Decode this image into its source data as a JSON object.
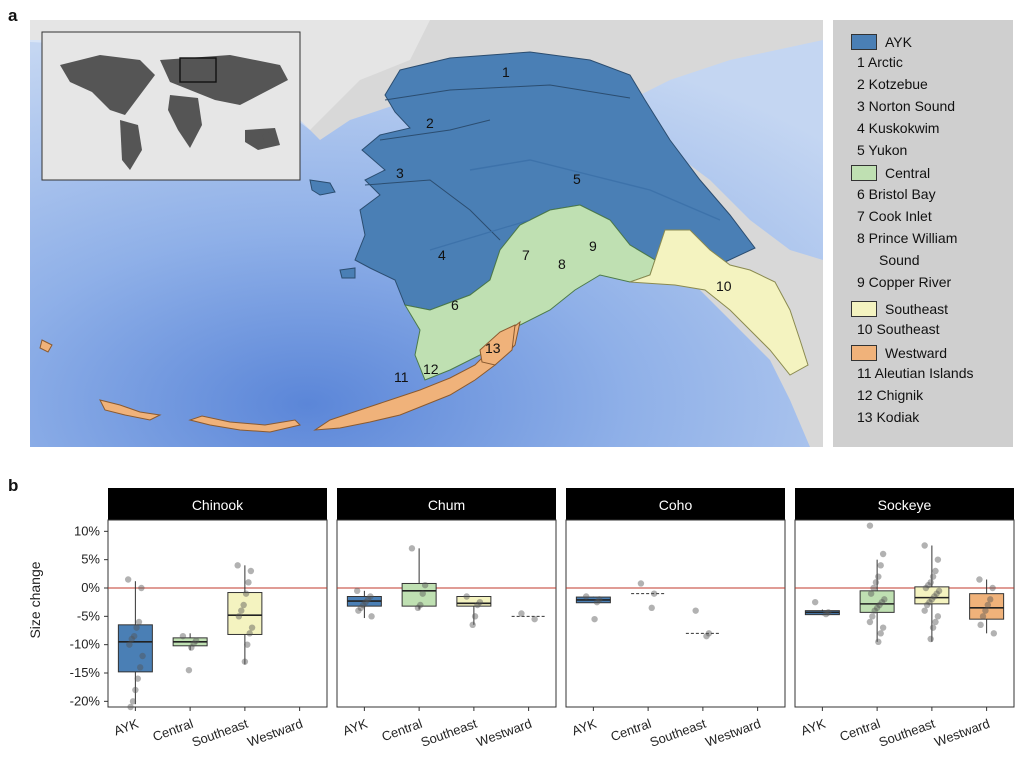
{
  "panel_a_label": "a",
  "panel_b_label": "b",
  "legend": {
    "groups": [
      {
        "name": "AYK",
        "color": "#4a7fb5",
        "items": [
          "1 Arctic",
          "2 Kotzebue",
          "3 Norton Sound",
          "4 Kuskokwim",
          "5 Yukon"
        ]
      },
      {
        "name": "Central",
        "color": "#bfe0b2",
        "items": [
          "6 Bristol Bay",
          "7 Cook Inlet",
          "8 Prince William",
          "Sound",
          "9 Copper River"
        ]
      },
      {
        "name": "Southeast",
        "color": "#f4f3c0",
        "items": [
          "10 Southeast"
        ]
      },
      {
        "name": "Westward",
        "color": "#f0b27a",
        "items": [
          "11 Aleutian Islands",
          "12 Chignik",
          "13 Kodiak"
        ]
      }
    ]
  },
  "map_labels": [
    "1",
    "2",
    "3",
    "4",
    "5",
    "6",
    "7",
    "8",
    "9",
    "10",
    "11",
    "12",
    "13"
  ],
  "chart_data": {
    "type": "box",
    "ylabel": "Size change",
    "yticks": [
      "10%",
      "5%",
      "0%",
      "-5%",
      "-10%",
      "-15%",
      "-20%"
    ],
    "ytick_values": [
      10,
      5,
      0,
      -5,
      -10,
      -15,
      -20
    ],
    "ylim": [
      -21,
      12
    ],
    "reference_line": 0,
    "categories": [
      "AYK",
      "Central",
      "Southeast",
      "Westward"
    ],
    "facets": [
      {
        "title": "Chinook",
        "boxes": [
          {
            "cat": "AYK",
            "q1": -14.8,
            "median": -9.5,
            "q3": -6.5,
            "lo": -20.5,
            "hi": 1.2,
            "points": [
              1.5,
              0,
              -6,
              -7,
              -8.5,
              -9,
              -10,
              -12,
              -14,
              -16,
              -18,
              -20,
              -21
            ]
          },
          {
            "cat": "Central",
            "q1": -10.2,
            "median": -9.5,
            "q3": -8.8,
            "lo": -11,
            "hi": -8,
            "points": [
              -8.5,
              -9.3,
              -9.8,
              -10.5,
              -14.5
            ]
          },
          {
            "cat": "Southeast",
            "q1": -8.2,
            "median": -4.8,
            "q3": -0.8,
            "lo": -13.5,
            "hi": 4,
            "points": [
              4,
              3,
              1,
              -1,
              -3,
              -4,
              -5,
              -7,
              -8,
              -10,
              -13
            ]
          },
          {
            "cat": "Westward",
            "points": []
          }
        ]
      },
      {
        "title": "Chum",
        "boxes": [
          {
            "cat": "AYK",
            "q1": -3.2,
            "median": -2.3,
            "q3": -1.5,
            "lo": -5.3,
            "hi": -0.5,
            "points": [
              -0.5,
              -1.5,
              -2,
              -2.5,
              -3,
              -3.5,
              -4,
              -5
            ]
          },
          {
            "cat": "Central",
            "q1": -3.2,
            "median": -0.5,
            "q3": 0.8,
            "lo": -3.8,
            "hi": 7,
            "points": [
              7,
              0.5,
              -1,
              -3,
              -3.5
            ]
          },
          {
            "cat": "Southeast",
            "q1": -3.2,
            "median": -2.7,
            "q3": -1.5,
            "lo": -6.5,
            "hi": -1.5,
            "points": [
              -1.5,
              -2.5,
              -3,
              -5,
              -6.5
            ]
          },
          {
            "cat": "Westward",
            "q1": -5,
            "median": -5,
            "q3": -5,
            "lo": -5,
            "hi": -5,
            "points": [
              -4.5,
              -5.5
            ],
            "flat": true
          }
        ]
      },
      {
        "title": "Coho",
        "boxes": [
          {
            "cat": "AYK",
            "q1": -2.6,
            "median": -2.1,
            "q3": -1.6,
            "lo": -2.6,
            "hi": -1.5,
            "points": [
              -1.5,
              -2,
              -2.5,
              -5.5
            ]
          },
          {
            "cat": "Central",
            "q1": -1,
            "median": -1,
            "q3": -1,
            "lo": -1,
            "hi": -1,
            "points": [
              0.8,
              -1,
              -3.5
            ],
            "flat": true
          },
          {
            "cat": "Southeast",
            "q1": -8,
            "median": -8,
            "q3": -8,
            "lo": -8,
            "hi": -8,
            "points": [
              -4,
              -8,
              -8.5
            ],
            "flat": true
          },
          {
            "cat": "Westward",
            "points": []
          }
        ]
      },
      {
        "title": "Sockeye",
        "boxes": [
          {
            "cat": "AYK",
            "q1": -4.7,
            "median": -4.3,
            "q3": -4,
            "lo": -4.8,
            "hi": -3.8,
            "points": [
              -2.5,
              -4.3,
              -4.6
            ]
          },
          {
            "cat": "Central",
            "q1": -4.3,
            "median": -2.8,
            "q3": -0.5,
            "lo": -9.5,
            "hi": 5,
            "points": [
              11,
              6,
              4,
              2,
              1,
              0,
              -1,
              -2,
              -2.5,
              -3,
              -3.5,
              -4,
              -5,
              -6,
              -7,
              -8,
              -9.5
            ]
          },
          {
            "cat": "Southeast",
            "q1": -2.8,
            "median": -1.7,
            "q3": 0.2,
            "lo": -9.5,
            "hi": 7.5,
            "points": [
              7.5,
              5,
              3,
              2,
              1,
              0.5,
              0,
              -0.5,
              -1,
              -1.5,
              -2,
              -2.5,
              -3,
              -4,
              -5,
              -6,
              -7,
              -9
            ]
          },
          {
            "cat": "Westward",
            "q1": -5.5,
            "median": -3.5,
            "q3": -1,
            "lo": -8,
            "hi": 1.5,
            "points": [
              1.5,
              0,
              -2,
              -3,
              -4,
              -5,
              -6.5,
              -8
            ]
          }
        ]
      }
    ]
  }
}
